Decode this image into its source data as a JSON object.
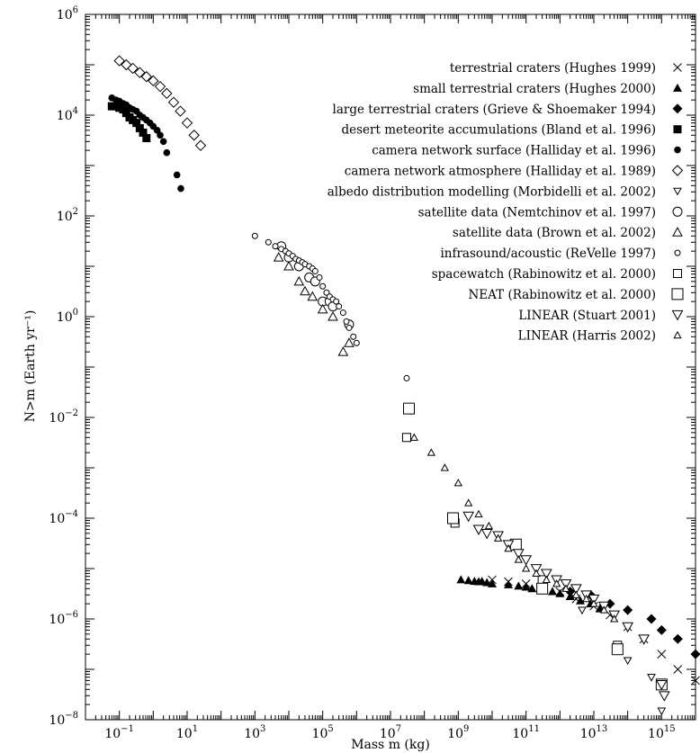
{
  "chart_data": {
    "type": "scatter",
    "xlabel": "Mass m (kg)",
    "ylabel": "N>m (Earth yr⁻¹)",
    "xscale": "log",
    "yscale": "log",
    "xlim": [
      0.01,
      1e+16
    ],
    "ylim": [
      1e-08,
      1000000.0
    ],
    "x_ticks": [
      {
        "base": "10",
        "exp": "−1",
        "value": 0.1
      },
      {
        "base": "10",
        "exp": "1",
        "value": 10
      },
      {
        "base": "10",
        "exp": "3",
        "value": 1000
      },
      {
        "base": "10",
        "exp": "5",
        "value": 100000
      },
      {
        "base": "10",
        "exp": "7",
        "value": 10000000
      },
      {
        "base": "10",
        "exp": "9",
        "value": 1000000000
      },
      {
        "base": "10",
        "exp": "11",
        "value": 100000000000
      },
      {
        "base": "10",
        "exp": "13",
        "value": 10000000000000
      },
      {
        "base": "10",
        "exp": "15",
        "value": 1000000000000000
      }
    ],
    "y_ticks": [
      {
        "base": "10",
        "exp": "−8",
        "value": 1e-08
      },
      {
        "base": "10",
        "exp": "−6",
        "value": 1e-06
      },
      {
        "base": "10",
        "exp": "−4",
        "value": 0.0001
      },
      {
        "base": "10",
        "exp": "−2",
        "value": 0.01
      },
      {
        "base": "10",
        "exp": "0",
        "value": 1
      },
      {
        "base": "10",
        "exp": "2",
        "value": 100
      },
      {
        "base": "10",
        "exp": "4",
        "value": 10000
      },
      {
        "base": "10",
        "exp": "6",
        "value": 1000000
      }
    ],
    "legend_position": "top-right",
    "series": [
      {
        "name": "terrestrial craters (Hughes 1999)",
        "marker": "x",
        "x": [
          10000000000.0,
          30000000000.0,
          100000000000.0,
          300000000000.0,
          1000000000000.0,
          3000000000000.0,
          10000000000000.0,
          30000000000000.0,
          100000000000000.0,
          300000000000000.0,
          1000000000000000.0,
          3000000000000000.0,
          1e+16
        ],
        "y": [
          6e-06,
          5.5e-06,
          5e-06,
          4e-06,
          3.5e-06,
          2.5e-06,
          1.8e-06,
          1.2e-06,
          7e-07,
          4e-07,
          2e-07,
          1e-07,
          6e-08
        ]
      },
      {
        "name": "small terrestrial craters (Hughes 2000)",
        "marker": "triangle-filled",
        "x": [
          1200000000.0,
          2000000000.0,
          3000000000.0,
          4000000000.0,
          5000000000.0,
          7000000000.0,
          10000000000.0,
          30000000000.0,
          60000000000.0,
          100000000000.0,
          150000000000.0,
          300000000000.0,
          600000000000.0,
          1000000000000.0,
          2000000000000.0,
          4000000000000.0,
          8000000000000.0,
          15000000000000.0
        ],
        "y": [
          6e-06,
          5.8e-06,
          5.6e-06,
          5.5e-06,
          5.6e-06,
          5.3e-06,
          5e-06,
          4.8e-06,
          4.5e-06,
          4.3e-06,
          4e-06,
          3.8e-06,
          3.5e-06,
          3.2e-06,
          2.8e-06,
          2.3e-06,
          2e-06,
          1.6e-06
        ]
      },
      {
        "name": "large terrestrial craters (Grieve & Shoemaker 1994)",
        "marker": "diamond-filled",
        "x": [
          2000000000000.0,
          8000000000000.0,
          30000000000000.0,
          100000000000000.0,
          500000000000000.0,
          1000000000000000.0,
          3000000000000000.0,
          1e+16
        ],
        "y": [
          3.5e-06,
          3e-06,
          2e-06,
          1.5e-06,
          1e-06,
          6e-07,
          4e-07,
          2e-07
        ]
      },
      {
        "name": "desert meteorite accumulations (Bland et al. 1996)",
        "marker": "square-filled",
        "x": [
          0.06,
          0.08,
          0.1,
          0.13,
          0.16,
          0.2,
          0.25,
          0.32,
          0.4,
          0.5,
          0.63
        ],
        "y": [
          15000,
          15000,
          14000,
          13000,
          11000,
          9000,
          8000,
          7000,
          5500,
          4500,
          3500
        ]
      },
      {
        "name": "camera network surface (Halliday et al. 1996)",
        "marker": "circle-filled",
        "x": [
          0.06,
          0.08,
          0.1,
          0.13,
          0.16,
          0.2,
          0.25,
          0.32,
          0.4,
          0.5,
          0.63,
          0.8,
          1,
          1.3,
          1.6,
          2,
          2.5,
          5,
          6.5
        ],
        "y": [
          22000,
          20000,
          19000,
          17000,
          16000,
          14000,
          13000,
          12000,
          10000,
          9000,
          8000,
          7000,
          6000,
          5000,
          4000,
          3000,
          1800,
          650,
          350
        ]
      },
      {
        "name": "camera network atmosphere (Halliday et al. 1989)",
        "marker": "diamond-open",
        "x": [
          0.1,
          0.16,
          0.25,
          0.4,
          0.63,
          1,
          1.6,
          2.5,
          4,
          6.3,
          10,
          16,
          25
        ],
        "y": [
          120000,
          100000,
          85000,
          70000,
          58000,
          48000,
          37000,
          27000,
          18000,
          12000,
          7000,
          4000,
          2500
        ]
      },
      {
        "name": "albedo distribution modelling (Morbidelli et al. 2002)",
        "marker": "triangle-down-open",
        "x": [
          4500000000000.0,
          50000000000000.0,
          100000000000000.0,
          500000000000000.0,
          1000000000000000.0
        ],
        "y": [
          1.5e-06,
          3e-07,
          1.5e-07,
          7e-08,
          1.5e-08
        ]
      },
      {
        "name": "satellite data (Nemtchinov et al. 1997)",
        "marker": "circle-open-large",
        "x": [
          6000.0,
          10000.0,
          20000.0,
          40000.0,
          60000.0,
          100000.0,
          160000.0,
          200000.0,
          600000.0
        ],
        "y": [
          25,
          15,
          10,
          6,
          5,
          2,
          2,
          1.6,
          0.7
        ]
      },
      {
        "name": "satellite data (Brown et al. 2002)",
        "marker": "triangle-open",
        "x": [
          5000.0,
          10000.0,
          20000.0,
          30000.0,
          50000.0,
          100000.0,
          200000.0,
          400000.0,
          600000.0
        ],
        "y": [
          15,
          10,
          5,
          3.2,
          2.5,
          1.4,
          1,
          0.2,
          0.3
        ]
      },
      {
        "name": "infrasound/acoustic (ReVelle 1997)",
        "marker": "circle-open-small",
        "x": [
          1000.0,
          2500.0,
          4000.0,
          6000.0,
          8000.0,
          10000.0,
          13000.0,
          16000.0,
          20000.0,
          25000.0,
          30000.0,
          40000.0,
          50000.0,
          60000.0,
          80000.0,
          100000.0,
          130000.0,
          160000.0,
          200000.0,
          250000.0,
          300000.0,
          400000.0,
          500000.0,
          600000.0,
          800000.0,
          1000000.0,
          30000000.0
        ],
        "y": [
          40,
          30,
          25,
          22,
          20,
          18,
          16,
          14,
          13,
          12,
          11,
          10,
          9,
          8,
          6,
          4,
          3,
          2.5,
          2.2,
          2,
          1.6,
          1.2,
          0.8,
          0.6,
          0.4,
          0.3,
          0.06
        ]
      },
      {
        "name": "spacewatch (Rabinowitz et al. 2000)",
        "marker": "square-open",
        "x": [
          30000000.0,
          800000000.0,
          50000000000.0,
          300000000000.0,
          50000000000000.0
        ],
        "y": [
          0.004,
          8e-05,
          3e-05,
          6e-06,
          3e-07
        ]
      },
      {
        "name": "NEAT (Rabinowitz et al. 2000)",
        "marker": "square-open-large",
        "x": [
          35000000.0,
          700000000.0,
          50000000000.0,
          300000000000.0,
          50000000000000.0,
          1000000000000000.0
        ],
        "y": [
          0.015,
          0.0001,
          3e-05,
          4e-06,
          2.5e-07,
          5e-08
        ]
      },
      {
        "name": "LINEAR (Stuart 2001)",
        "marker": "triangle-down-large",
        "x": [
          2000000000.0,
          4000000000.0,
          7000000000.0,
          15000000000.0,
          30000000000.0,
          60000000000.0,
          100000000000.0,
          200000000000.0,
          400000000000.0,
          800000000000.0,
          1500000000000.0,
          3000000000000.0,
          6000000000000.0,
          10000000000000.0,
          20000000000000.0,
          40000000000000.0,
          100000000000000.0,
          300000000000000.0,
          1000000000000000.0,
          1200000000000000.0
        ],
        "y": [
          0.00011,
          6e-05,
          5e-05,
          4.5e-05,
          3e-05,
          2e-05,
          1.5e-05,
          1e-05,
          8e-06,
          6e-06,
          5e-06,
          4e-06,
          3e-06,
          2.5e-06,
          1.8e-06,
          1.2e-06,
          7e-07,
          4e-07,
          5e-08,
          3e-08
        ]
      },
      {
        "name": "LINEAR (Harris 2002)",
        "marker": "triangle-open-small",
        "x": [
          50000000.0,
          160000000.0,
          400000000.0,
          1000000000.0,
          2000000000.0,
          4000000000.0,
          8000000000.0,
          15000000000.0,
          30000000000.0,
          60000000000.0,
          100000000000.0,
          200000000000.0,
          400000000000.0,
          800000000000.0,
          1500000000000.0,
          3000000000000.0,
          6000000000000.0,
          10000000000000.0,
          20000000000000.0,
          40000000000000.0
        ],
        "y": [
          0.004,
          0.002,
          0.001,
          0.0005,
          0.0002,
          0.00012,
          7e-05,
          4e-05,
          2.5e-05,
          1.5e-05,
          1e-05,
          8e-06,
          6e-06,
          5e-06,
          4e-06,
          3e-06,
          2.5e-06,
          2e-06,
          1.5e-06,
          1e-06
        ]
      }
    ]
  }
}
